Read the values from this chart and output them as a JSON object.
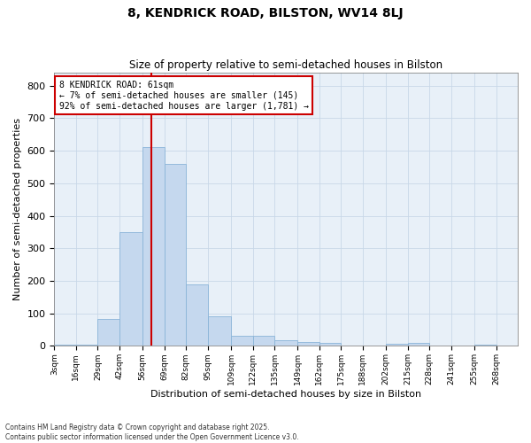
{
  "title": "8, KENDRICK ROAD, BILSTON, WV14 8LJ",
  "subtitle": "Size of property relative to semi-detached houses in Bilston",
  "xlabel": "Distribution of semi-detached houses by size in Bilston",
  "ylabel": "Number of semi-detached properties",
  "annotation_title": "8 KENDRICK ROAD: 61sqm",
  "annotation_line1": "← 7% of semi-detached houses are smaller (145)",
  "annotation_line2": "92% of semi-detached houses are larger (1,781) →",
  "footnote1": "Contains HM Land Registry data © Crown copyright and database right 2025.",
  "footnote2": "Contains public sector information licensed under the Open Government Licence v3.0.",
  "bar_color": "#c5d8ee",
  "bar_edge_color": "#8ab4d8",
  "grid_color": "#c8d8e8",
  "background_color": "#e8f0f8",
  "fig_background": "#ffffff",
  "vline_x": 61,
  "vline_color": "#cc0000",
  "categories": [
    "3sqm",
    "16sqm",
    "29sqm",
    "42sqm",
    "56sqm",
    "69sqm",
    "82sqm",
    "95sqm",
    "109sqm",
    "122sqm",
    "135sqm",
    "149sqm",
    "162sqm",
    "175sqm",
    "188sqm",
    "202sqm",
    "215sqm",
    "228sqm",
    "241sqm",
    "255sqm",
    "268sqm"
  ],
  "bin_edges": [
    3,
    16,
    29,
    42,
    56,
    69,
    82,
    95,
    109,
    122,
    135,
    149,
    162,
    175,
    188,
    202,
    215,
    228,
    241,
    255,
    268,
    281
  ],
  "values": [
    3,
    5,
    83,
    350,
    610,
    560,
    190,
    90,
    30,
    30,
    18,
    12,
    8,
    0,
    0,
    6,
    8,
    0,
    0,
    3,
    0
  ],
  "ylim": [
    0,
    840
  ],
  "yticks": [
    0,
    100,
    200,
    300,
    400,
    500,
    600,
    700,
    800
  ]
}
